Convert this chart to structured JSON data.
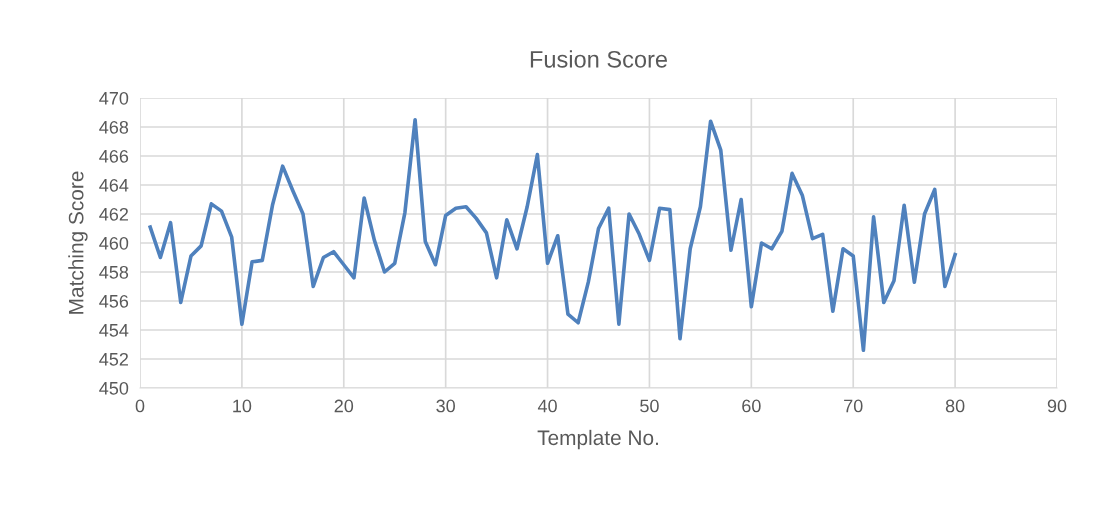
{
  "chart_data": {
    "type": "line",
    "title": "Fusion Score",
    "xlabel": "Template No.",
    "ylabel": "Matching Score",
    "x": [
      1,
      2,
      3,
      4,
      5,
      6,
      7,
      8,
      9,
      10,
      11,
      12,
      13,
      14,
      15,
      16,
      17,
      18,
      19,
      20,
      21,
      22,
      23,
      24,
      25,
      26,
      27,
      28,
      29,
      30,
      31,
      32,
      33,
      34,
      35,
      36,
      37,
      38,
      39,
      40,
      41,
      42,
      43,
      44,
      45,
      46,
      47,
      48,
      49,
      50,
      51,
      52,
      53,
      54,
      55,
      56,
      57,
      58,
      59,
      60,
      61,
      62,
      63,
      64,
      65,
      66,
      67,
      68,
      69,
      70,
      71,
      72,
      73,
      74,
      75,
      76,
      77,
      78,
      79,
      80
    ],
    "series": [
      {
        "color": "#4f81bd",
        "values": [
          461.1,
          459.0,
          461.4,
          455.9,
          459.1,
          459.8,
          462.7,
          462.2,
          460.4,
          454.4,
          458.7,
          458.8,
          462.6,
          465.3,
          463.6,
          462.0,
          457.0,
          459.0,
          459.4,
          458.5,
          457.6,
          463.1,
          460.2,
          458.0,
          458.6,
          462.1,
          468.5,
          460.1,
          458.5,
          461.9,
          462.4,
          462.5,
          461.7,
          460.7,
          457.6,
          461.6,
          459.6,
          462.5,
          466.1,
          458.6,
          460.5,
          455.1,
          454.5,
          457.3,
          461.0,
          462.4,
          454.4,
          462.0,
          460.6,
          458.8,
          462.4,
          462.3,
          453.4,
          459.6,
          462.5,
          468.4,
          466.4,
          459.5,
          463.0,
          455.6,
          460.0,
          459.6,
          460.8,
          464.8,
          463.3,
          460.3,
          460.6,
          455.3,
          459.6,
          459.1,
          452.6,
          461.8,
          455.9,
          457.4,
          462.6,
          457.3,
          462.0,
          463.7,
          457.0,
          459.2
        ]
      }
    ],
    "xlim": [
      0,
      90
    ],
    "xticks": [
      0,
      10,
      20,
      30,
      40,
      50,
      60,
      70,
      80,
      90
    ],
    "ylim": [
      450,
      470
    ],
    "yticks": [
      450,
      452,
      454,
      456,
      458,
      460,
      462,
      464,
      466,
      468,
      470
    ],
    "grid": true,
    "legend": false,
    "marker": "none",
    "line_style": "solid"
  }
}
